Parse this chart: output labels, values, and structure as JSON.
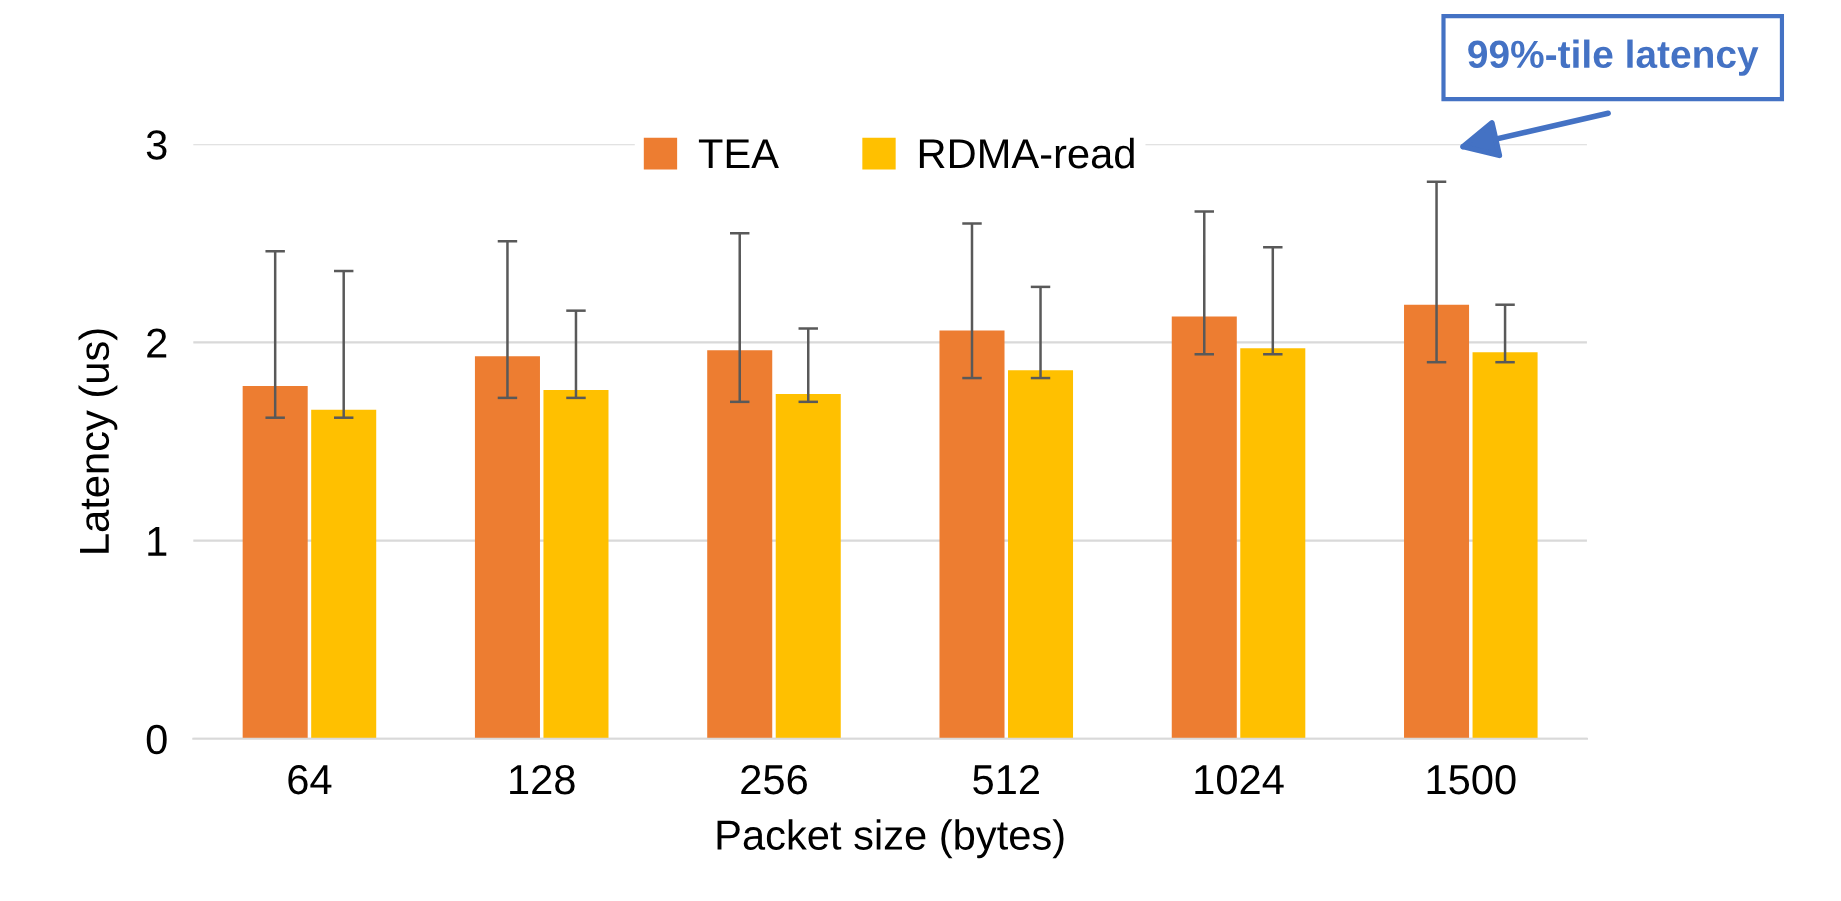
{
  "chart_data": {
    "type": "bar",
    "categories": [
      "64",
      "128",
      "256",
      "512",
      "1024",
      "1500"
    ],
    "xlabel": "Packet size (bytes)",
    "ylabel": "Latency (us)",
    "ylim": [
      0,
      3
    ],
    "yticks": [
      0,
      1,
      2,
      3
    ],
    "grid": "y",
    "legend": "top",
    "series": [
      {
        "name": "TEA",
        "color": "#ed7d31",
        "values": [
          1.78,
          1.93,
          1.96,
          2.06,
          2.13,
          2.19
        ],
        "errors": [
          [
            1.62,
            2.46
          ],
          [
            1.72,
            2.51
          ],
          [
            1.7,
            2.55
          ],
          [
            1.82,
            2.6
          ],
          [
            1.94,
            2.66
          ],
          [
            1.9,
            2.81
          ]
        ]
      },
      {
        "name": "RDMA-read",
        "color": "#ffc000",
        "values": [
          1.66,
          1.76,
          1.74,
          1.86,
          1.97,
          1.95
        ],
        "errors": [
          [
            1.62,
            2.36
          ],
          [
            1.72,
            2.16
          ],
          [
            1.7,
            2.07
          ],
          [
            1.82,
            2.28
          ],
          [
            1.94,
            2.48
          ],
          [
            1.9,
            2.19
          ]
        ]
      }
    ],
    "annotations": [
      "99%-tile latency"
    ]
  }
}
